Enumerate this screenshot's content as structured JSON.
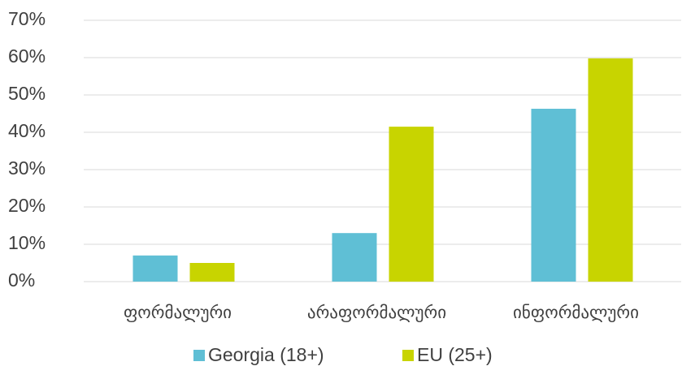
{
  "chart_data": {
    "type": "bar",
    "categories": [
      "ფორმალური",
      "არაფორმალური",
      "ინფორმალური"
    ],
    "series": [
      {
        "name": "Georgia (18+)",
        "color": "#5fbfd5",
        "values": [
          7,
          13,
          46.3
        ]
      },
      {
        "name": "EU (25+)",
        "color": "#c8d400",
        "values": [
          5,
          41.5,
          59.8
        ]
      }
    ],
    "ylim": [
      0,
      70
    ],
    "yticks": [
      {
        "value": 0,
        "label": "0%"
      },
      {
        "value": 10,
        "label": "10%"
      },
      {
        "value": 20,
        "label": "20%"
      },
      {
        "value": 30,
        "label": "30%"
      },
      {
        "value": 40,
        "label": "40%"
      },
      {
        "value": 50,
        "label": "50%"
      },
      {
        "value": 60,
        "label": "60%"
      },
      {
        "value": 70,
        "label": "70%"
      }
    ],
    "grid": true,
    "legend": "bottom"
  }
}
